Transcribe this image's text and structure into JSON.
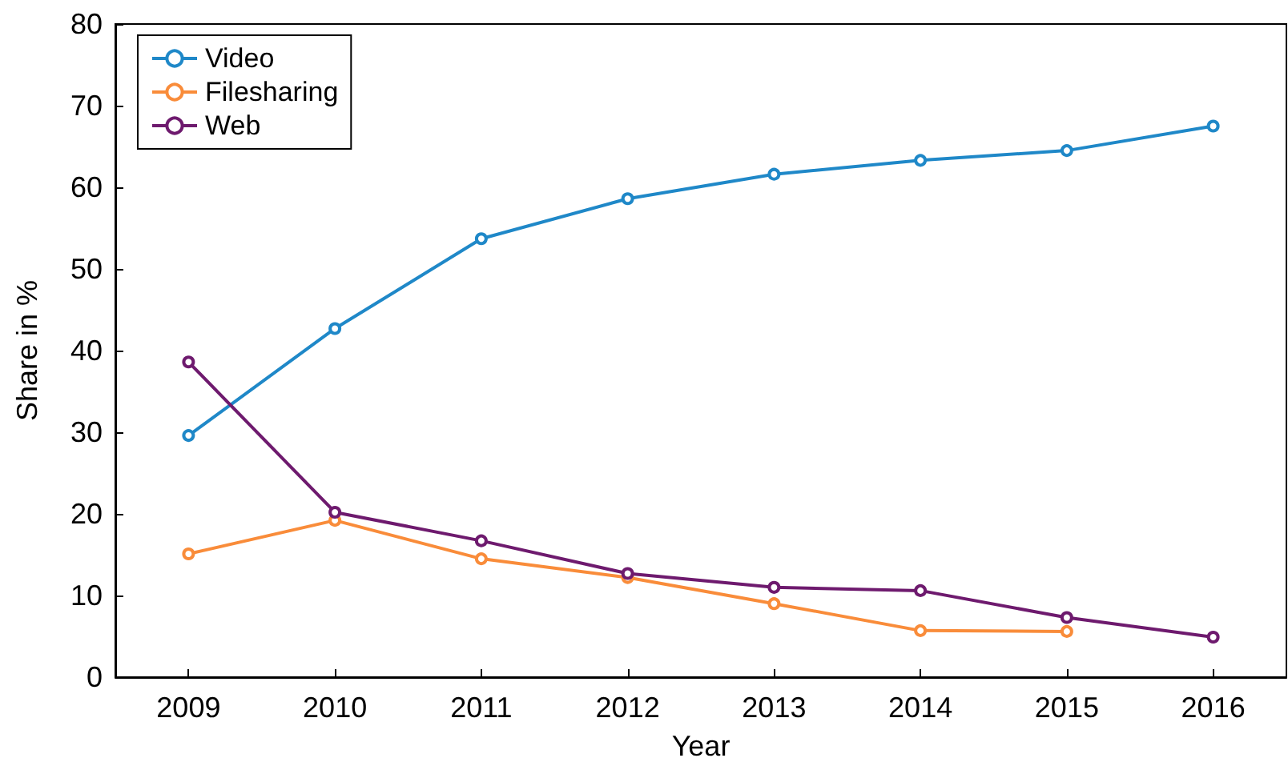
{
  "chart_data": {
    "type": "line",
    "xlabel": "Year",
    "ylabel": "Share in %",
    "x": [
      2009,
      2010,
      2011,
      2012,
      2013,
      2014,
      2015,
      2016
    ],
    "series": [
      {
        "name": "Video",
        "color": "#1f88c8",
        "values": [
          29.6,
          42.7,
          53.7,
          58.6,
          61.6,
          63.3,
          64.5,
          67.5
        ]
      },
      {
        "name": "Filesharing",
        "color": "#f98c3a",
        "values": [
          15.1,
          19.2,
          14.5,
          12.2,
          9.0,
          5.7,
          5.6,
          null
        ]
      },
      {
        "name": "Web",
        "color": "#6e1a6e",
        "values": [
          38.6,
          20.2,
          16.7,
          12.7,
          11.0,
          10.6,
          7.3,
          4.9
        ]
      }
    ],
    "xlim": [
      2008.5,
      2016.5
    ],
    "xticks": [
      2009,
      2010,
      2011,
      2012,
      2013,
      2014,
      2015,
      2016
    ],
    "ylim": [
      0,
      80
    ],
    "yticks": [
      0,
      10,
      20,
      30,
      40,
      50,
      60,
      70,
      80
    ],
    "grid": false,
    "legend": "top left",
    "marker": "circle",
    "line_style": "solid"
  }
}
